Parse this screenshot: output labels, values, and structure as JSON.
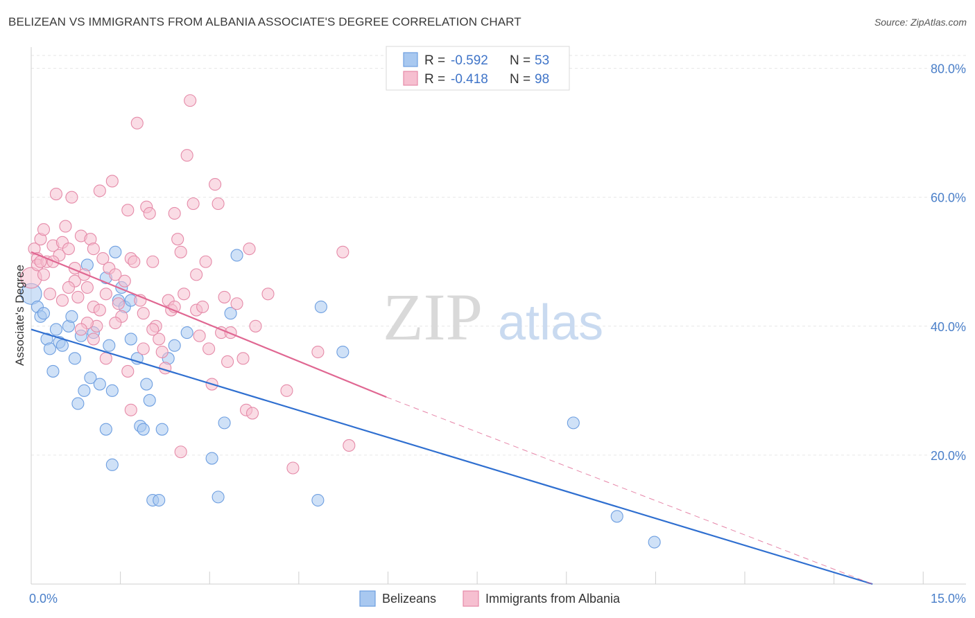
{
  "header": {
    "title": "BELIZEAN VS IMMIGRANTS FROM ALBANIA ASSOCIATE'S DEGREE CORRELATION CHART",
    "source": "Source: ZipAtlas.com"
  },
  "watermark": {
    "zip": "ZIP",
    "atlas": "atlas"
  },
  "colors": {
    "blue_fill": "#a8c8f0",
    "blue_stroke": "#6d9ee0",
    "blue_line": "#2f6fd0",
    "pink_fill": "#f6bfd0",
    "pink_stroke": "#e58aa8",
    "pink_line": "#e06792",
    "axis_text": "#4a7fc9",
    "grid": "#e6e6e6"
  },
  "legend": {
    "rows": [
      {
        "r_label": "R =",
        "r_value": "-0.592",
        "n_label": "N =",
        "n_value": "53"
      },
      {
        "r_label": "R =",
        "r_value": "-0.418",
        "n_label": "N =",
        "n_value": "98"
      }
    ]
  },
  "bottom_legend": [
    "Belizeans",
    "Immigrants from Albania"
  ],
  "chart_data": {
    "type": "scatter",
    "ylabel": "Associate's Degree",
    "xlim": [
      0,
      15
    ],
    "ylim": [
      0,
      82
    ],
    "x_tick_labels": [
      "0.0%",
      "15.0%"
    ],
    "x_tick_values": [
      0,
      15
    ],
    "y_tick_labels": [
      "20.0%",
      "40.0%",
      "60.0%",
      "80.0%"
    ],
    "y_tick_values": [
      20,
      40,
      60,
      80
    ],
    "grid": true,
    "legend_position": "top-center",
    "series": [
      {
        "name": "Belizeans",
        "trend": {
          "x": [
            0,
            13.5
          ],
          "y": [
            39.5,
            0
          ]
        },
        "points": [
          [
            0.0,
            45.0
          ],
          [
            0.1,
            43.0
          ],
          [
            0.15,
            41.5
          ],
          [
            0.2,
            42.0
          ],
          [
            0.25,
            38.0
          ],
          [
            0.3,
            36.5
          ],
          [
            0.35,
            33.0
          ],
          [
            0.4,
            39.5
          ],
          [
            0.45,
            37.5
          ],
          [
            0.5,
            37.0
          ],
          [
            0.6,
            40.0
          ],
          [
            0.65,
            41.5
          ],
          [
            0.7,
            35.0
          ],
          [
            0.75,
            28.0
          ],
          [
            0.8,
            38.5
          ],
          [
            0.85,
            30.0
          ],
          [
            0.9,
            49.5
          ],
          [
            0.95,
            32.0
          ],
          [
            1.0,
            39.0
          ],
          [
            1.1,
            31.0
          ],
          [
            1.2,
            24.0
          ],
          [
            1.25,
            37.0
          ],
          [
            1.3,
            18.5
          ],
          [
            1.3,
            30.0
          ],
          [
            1.35,
            51.5
          ],
          [
            1.4,
            44.0
          ],
          [
            1.45,
            46.0
          ],
          [
            1.5,
            43.0
          ],
          [
            1.6,
            44.0
          ],
          [
            1.6,
            38.0
          ],
          [
            1.7,
            35.0
          ],
          [
            1.75,
            24.5
          ],
          [
            1.8,
            24.0
          ],
          [
            1.85,
            31.0
          ],
          [
            1.9,
            28.5
          ],
          [
            1.95,
            13.0
          ],
          [
            2.05,
            13.0
          ],
          [
            2.1,
            24.0
          ],
          [
            2.2,
            35.0
          ],
          [
            2.3,
            37.0
          ],
          [
            2.5,
            39.0
          ],
          [
            2.9,
            19.5
          ],
          [
            3.0,
            13.5
          ],
          [
            3.1,
            25.0
          ],
          [
            3.2,
            42.0
          ],
          [
            3.3,
            51.0
          ],
          [
            4.6,
            13.0
          ],
          [
            4.65,
            43.0
          ],
          [
            5.0,
            36.0
          ],
          [
            8.7,
            25.0
          ],
          [
            9.4,
            10.5
          ],
          [
            10.0,
            6.5
          ],
          [
            1.2,
            47.5
          ]
        ]
      },
      {
        "name": "Immigrants from Albania",
        "trend": {
          "x": [
            0,
            5.7
          ],
          "y": [
            51.5,
            29.0
          ]
        },
        "trend_dashed": {
          "x": [
            5.7,
            13.5
          ],
          "y": [
            29.0,
            0
          ]
        },
        "points": [
          [
            0.0,
            47.5
          ],
          [
            0.05,
            52.0
          ],
          [
            0.1,
            50.5
          ],
          [
            0.1,
            49.5
          ],
          [
            0.15,
            53.5
          ],
          [
            0.2,
            48.0
          ],
          [
            0.25,
            50.0
          ],
          [
            0.3,
            45.0
          ],
          [
            0.35,
            52.5
          ],
          [
            0.4,
            60.5
          ],
          [
            0.45,
            51.0
          ],
          [
            0.5,
            53.0
          ],
          [
            0.55,
            55.5
          ],
          [
            0.6,
            52.0
          ],
          [
            0.65,
            60.0
          ],
          [
            0.7,
            47.0
          ],
          [
            0.75,
            44.5
          ],
          [
            0.8,
            54.0
          ],
          [
            0.85,
            48.0
          ],
          [
            0.9,
            46.0
          ],
          [
            0.95,
            53.5
          ],
          [
            1.0,
            43.0
          ],
          [
            1.05,
            40.0
          ],
          [
            1.1,
            61.0
          ],
          [
            1.15,
            50.5
          ],
          [
            1.2,
            45.0
          ],
          [
            1.25,
            49.0
          ],
          [
            1.3,
            62.5
          ],
          [
            1.35,
            48.0
          ],
          [
            1.4,
            43.5
          ],
          [
            1.45,
            41.5
          ],
          [
            1.5,
            47.0
          ],
          [
            1.55,
            58.0
          ],
          [
            1.6,
            50.5
          ],
          [
            1.65,
            50.0
          ],
          [
            1.7,
            71.5
          ],
          [
            1.75,
            44.0
          ],
          [
            1.8,
            42.0
          ],
          [
            1.85,
            58.5
          ],
          [
            1.9,
            57.5
          ],
          [
            1.95,
            50.0
          ],
          [
            2.0,
            40.0
          ],
          [
            2.05,
            38.0
          ],
          [
            2.1,
            36.0
          ],
          [
            2.15,
            33.5
          ],
          [
            2.2,
            44.0
          ],
          [
            2.25,
            42.5
          ],
          [
            2.3,
            57.5
          ],
          [
            2.35,
            53.5
          ],
          [
            2.4,
            51.5
          ],
          [
            2.45,
            45.0
          ],
          [
            2.5,
            66.5
          ],
          [
            2.55,
            75.0
          ],
          [
            2.6,
            59.0
          ],
          [
            2.65,
            42.5
          ],
          [
            2.7,
            38.5
          ],
          [
            2.75,
            43.0
          ],
          [
            2.8,
            50.0
          ],
          [
            2.85,
            36.5
          ],
          [
            2.9,
            31.0
          ],
          [
            2.95,
            62.0
          ],
          [
            3.0,
            59.0
          ],
          [
            3.05,
            39.0
          ],
          [
            3.1,
            44.5
          ],
          [
            3.15,
            34.5
          ],
          [
            3.2,
            39.0
          ],
          [
            3.3,
            43.5
          ],
          [
            3.4,
            35.0
          ],
          [
            3.45,
            27.0
          ],
          [
            3.5,
            52.0
          ],
          [
            3.55,
            26.5
          ],
          [
            3.6,
            40.0
          ],
          [
            3.8,
            45.0
          ],
          [
            4.1,
            30.0
          ],
          [
            4.2,
            18.0
          ],
          [
            4.6,
            36.0
          ],
          [
            5.0,
            51.5
          ],
          [
            5.1,
            21.5
          ],
          [
            1.0,
            52.0
          ],
          [
            1.1,
            42.5
          ],
          [
            1.35,
            40.5
          ],
          [
            1.6,
            27.0
          ],
          [
            1.8,
            36.5
          ],
          [
            1.95,
            39.5
          ],
          [
            2.3,
            43.0
          ],
          [
            2.4,
            20.5
          ],
          [
            0.6,
            46.0
          ],
          [
            0.7,
            49.0
          ],
          [
            0.9,
            40.5
          ],
          [
            1.2,
            35.0
          ],
          [
            1.55,
            33.0
          ],
          [
            0.2,
            55.0
          ],
          [
            0.35,
            50.0
          ],
          [
            0.5,
            44.0
          ],
          [
            0.8,
            39.5
          ],
          [
            1.0,
            38.0
          ],
          [
            2.65,
            48.0
          ],
          [
            0.15,
            50.0
          ]
        ]
      }
    ]
  }
}
